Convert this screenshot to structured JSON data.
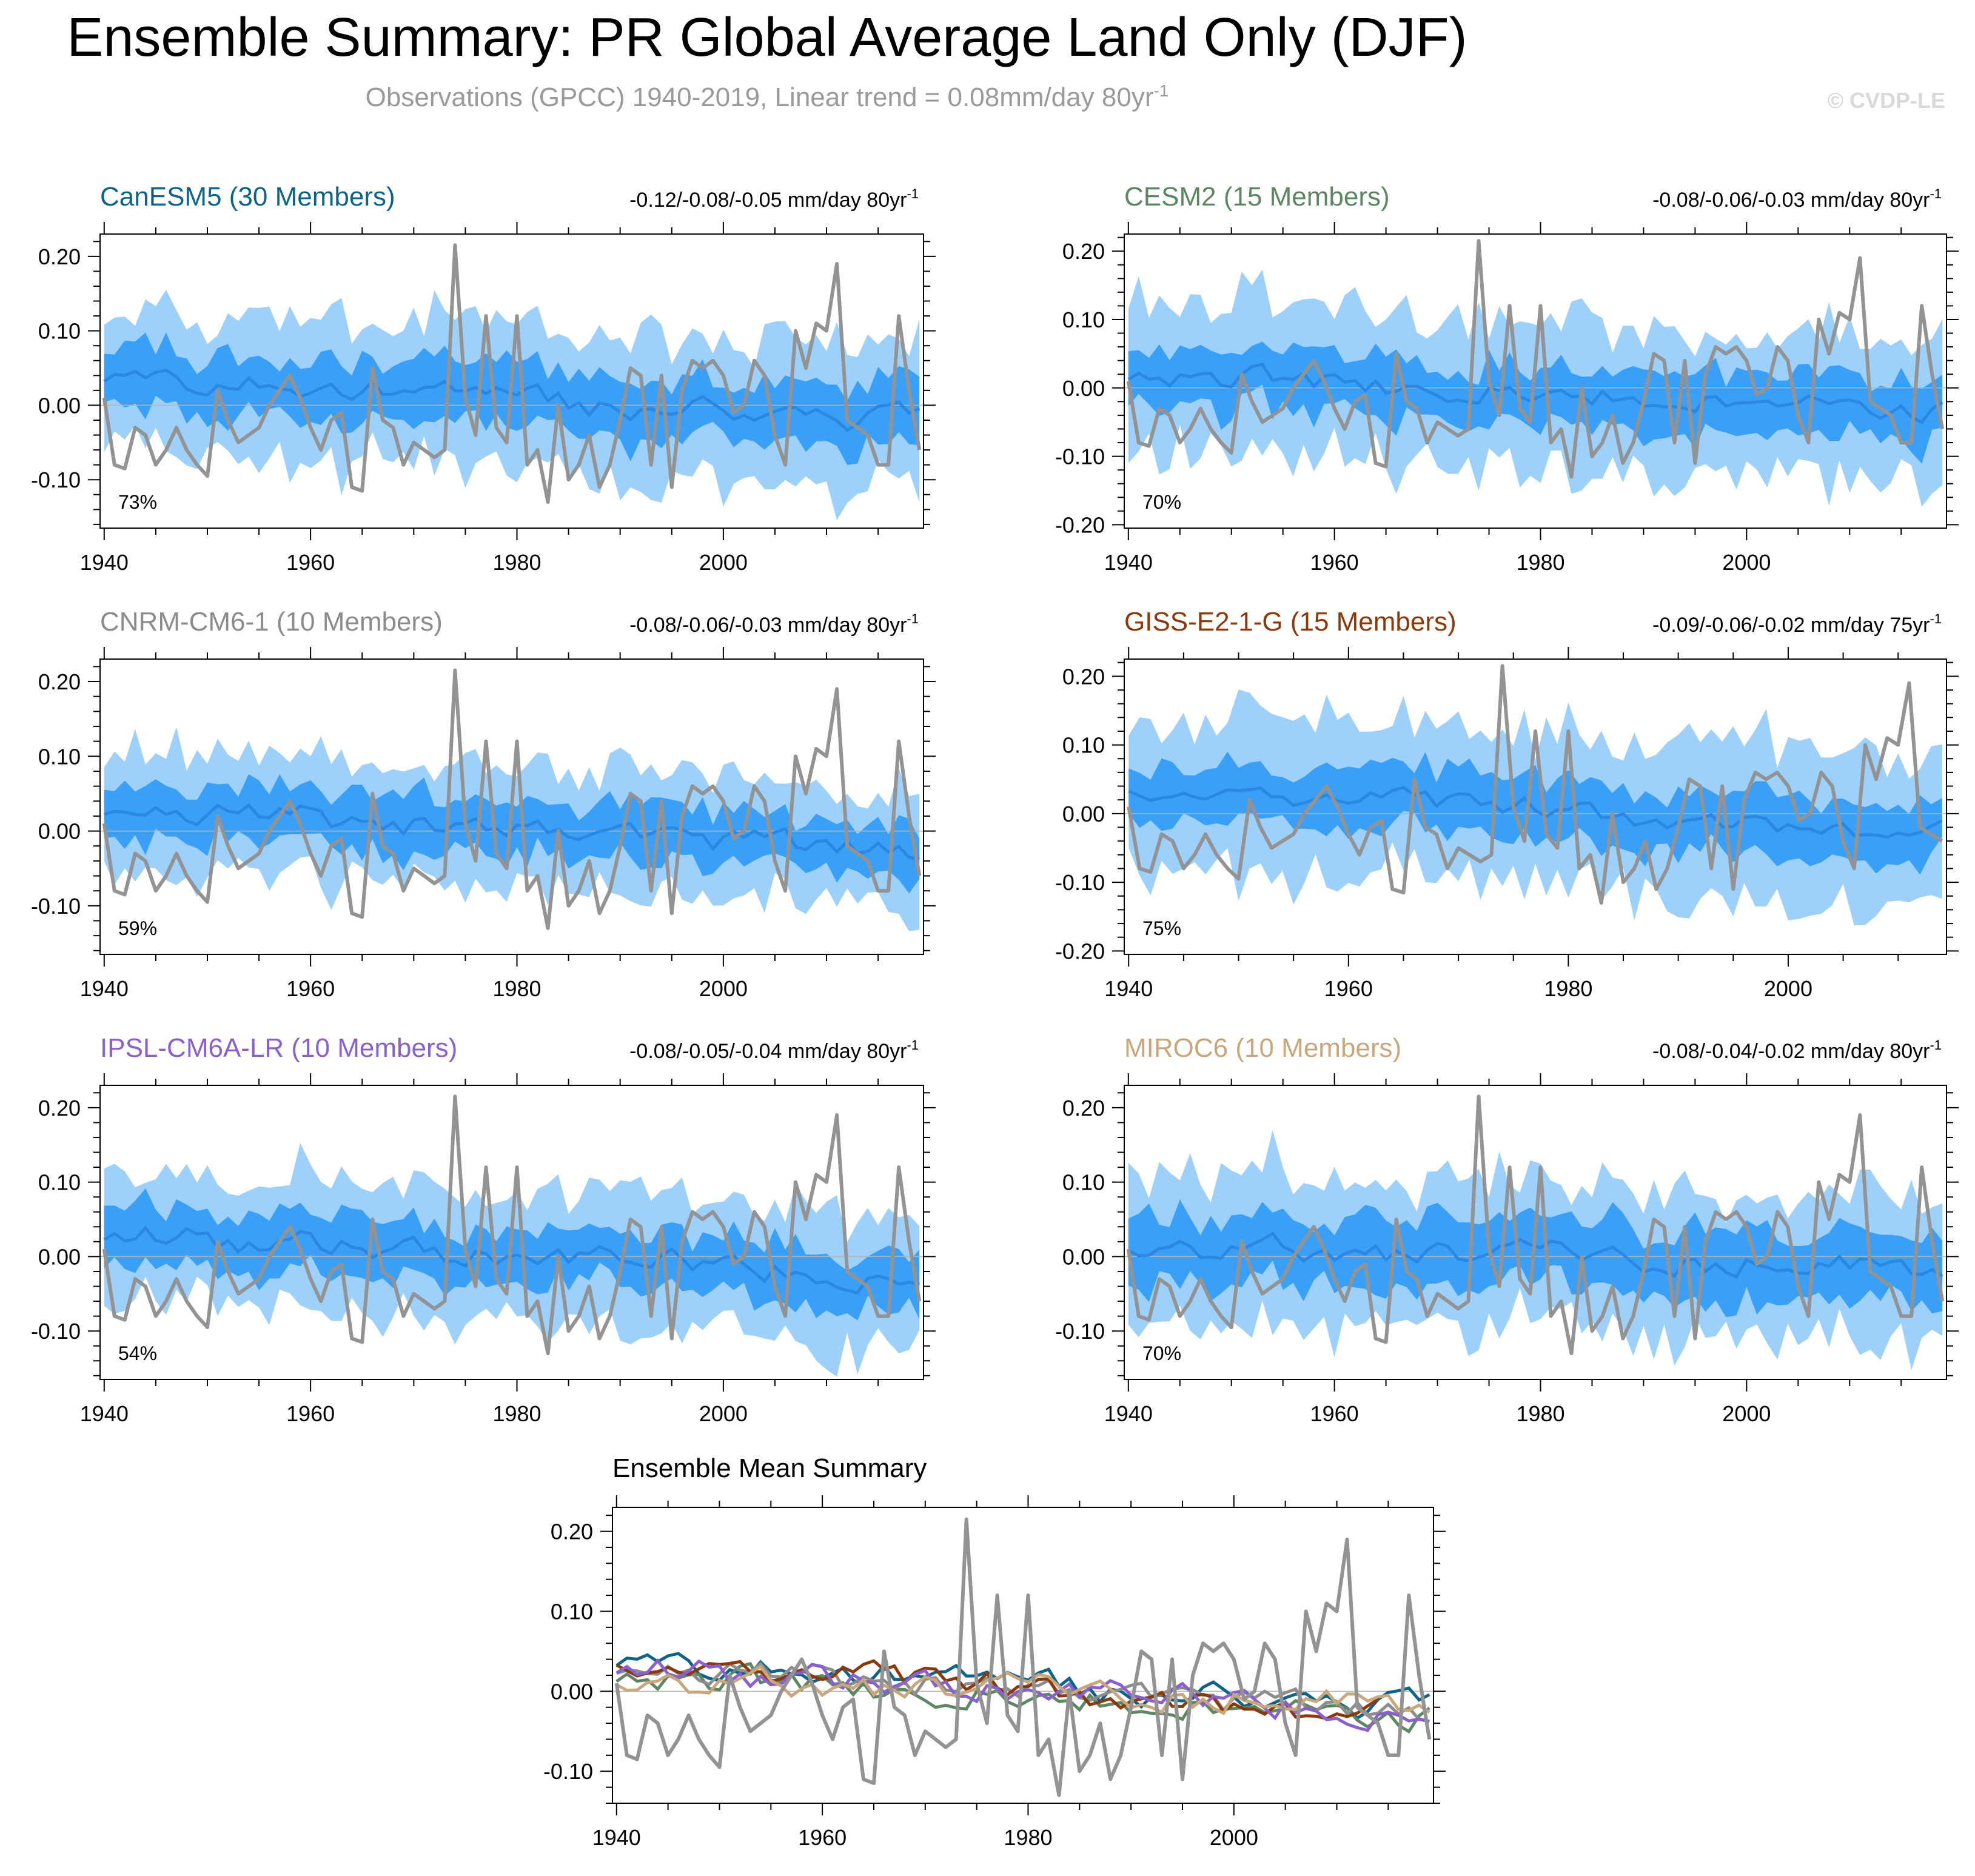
{
  "figure": {
    "title": "Ensemble Summary: PR Global Average Land Only (DJF)",
    "subtitle_prefix": "Observations (GPCC) 1940-2019, Linear trend = 0.08mm/day 80yr",
    "subtitle_sup": "-1",
    "watermark": "© CVDP-LE"
  },
  "colors": {
    "band_outer": "#9dd0fb",
    "band_inner": "#3a9ff7",
    "mean_line": "#2a87e3",
    "obs_line": "#939393",
    "zero_line": "#b4b4b4",
    "axis": "#000000",
    "title": "#000000",
    "subtitle": "#9a9a9a",
    "watermark": "#d9d9d9"
  },
  "chart_data": [
    {
      "type": "line",
      "panel": "CanESM5",
      "title": "CanESM5 (30 Members)",
      "title_color": "#0e6486",
      "trend_text": "-0.12/-0.08/-0.05 mm/day 80yr",
      "trend_sup": "-1",
      "percent_label": "73%",
      "x_start": 1940,
      "x_end": 2019,
      "xlim": [
        1939.6,
        2019.4
      ],
      "ylim": [
        -0.165,
        0.23
      ],
      "yticks": [
        -0.1,
        0.0,
        0.1,
        0.2
      ],
      "ytick_labels": [
        "-0.10",
        "0.00",
        "0.10",
        "0.20"
      ],
      "xticks": [
        1940,
        1960,
        1980,
        2000
      ],
      "xtick_labels": [
        "1940",
        "1960",
        "1980",
        "2000"
      ],
      "band_series": [
        "ens_min",
        "ens_p25",
        "ens_mean",
        "ens_p75",
        "ens_max"
      ],
      "ens_mean_start": 0.04,
      "ens_mean_end": -0.025,
      "inner_half_width": 0.038,
      "outer_half_width": 0.092,
      "seed": 11
    },
    {
      "type": "line",
      "panel": "CESM2",
      "title": "CESM2 (15 Members)",
      "title_color": "#5c8762",
      "trend_text": "-0.08/-0.06/-0.03 mm/day 80yr",
      "trend_sup": "-1",
      "percent_label": "70%",
      "x_start": 1940,
      "x_end": 2019,
      "xlim": [
        1939.6,
        2019.4
      ],
      "ylim": [
        -0.205,
        0.225
      ],
      "yticks": [
        -0.2,
        -0.1,
        0.0,
        0.1,
        0.2
      ],
      "ytick_labels": [
        "-0.20",
        "-0.10",
        "0.00",
        "0.10",
        "0.20"
      ],
      "xticks": [
        1940,
        1960,
        1980,
        2000
      ],
      "xtick_labels": [
        "1940",
        "1960",
        "1980",
        "2000"
      ],
      "band_series": [
        "ens_min",
        "ens_p25",
        "ens_mean",
        "ens_p75",
        "ens_max"
      ],
      "ens_mean_start": 0.02,
      "ens_mean_end": -0.03,
      "inner_half_width": 0.04,
      "outer_half_width": 0.105,
      "seed": 23
    },
    {
      "type": "line",
      "panel": "CNRM-CM6-1",
      "title": "CNRM-CM6-1 (10 Members)",
      "title_color": "#8c8c8c",
      "trend_text": "-0.08/-0.06/-0.03 mm/day 80yr",
      "trend_sup": "-1",
      "percent_label": "59%",
      "x_start": 1940,
      "x_end": 2019,
      "xlim": [
        1939.6,
        2019.4
      ],
      "ylim": [
        -0.165,
        0.23
      ],
      "yticks": [
        -0.1,
        0.0,
        0.1,
        0.2
      ],
      "ytick_labels": [
        "-0.10",
        "0.00",
        "0.10",
        "0.20"
      ],
      "xticks": [
        1940,
        1960,
        1980,
        2000
      ],
      "xtick_labels": [
        "1940",
        "1960",
        "1980",
        "2000"
      ],
      "band_series": [
        "ens_min",
        "ens_p25",
        "ens_mean",
        "ens_p75",
        "ens_max"
      ],
      "ens_mean_start": 0.03,
      "ens_mean_end": -0.03,
      "inner_half_width": 0.035,
      "outer_half_width": 0.08,
      "seed": 37
    },
    {
      "type": "line",
      "panel": "GISS-E2-1-G",
      "title": "GISS-E2-1-G (15 Members)",
      "title_color": "#8a3a0a",
      "trend_text": "-0.09/-0.06/-0.02 mm/day 75yr",
      "trend_sup": "-1",
      "percent_label": "75%",
      "x_start": 1940,
      "x_end": 2014,
      "xlim": [
        1939.6,
        2014.4
      ],
      "ylim": [
        -0.205,
        0.225
      ],
      "yticks": [
        -0.2,
        -0.1,
        0.0,
        0.1,
        0.2
      ],
      "ytick_labels": [
        "-0.20",
        "-0.10",
        "0.00",
        "0.10",
        "0.20"
      ],
      "xticks": [
        1940,
        1960,
        1980,
        2000
      ],
      "xtick_labels": [
        "1940",
        "1960",
        "1980",
        "2000"
      ],
      "band_series": [
        "ens_min",
        "ens_p25",
        "ens_mean",
        "ens_p75",
        "ens_max"
      ],
      "ens_mean_start": 0.04,
      "ens_mean_end": -0.03,
      "inner_half_width": 0.04,
      "outer_half_width": 0.11,
      "seed": 53
    },
    {
      "type": "line",
      "panel": "IPSL-CM6A-LR",
      "title": "IPSL-CM6A-LR (10 Members)",
      "title_color": "#8a5fd0",
      "trend_text": "-0.08/-0.05/-0.04 mm/day 80yr",
      "trend_sup": "-1",
      "percent_label": "54%",
      "x_start": 1940,
      "x_end": 2019,
      "xlim": [
        1939.6,
        2019.4
      ],
      "ylim": [
        -0.165,
        0.23
      ],
      "yticks": [
        -0.1,
        0.0,
        0.1,
        0.2
      ],
      "ytick_labels": [
        "-0.10",
        "0.00",
        "0.10",
        "0.20"
      ],
      "xticks": [
        1940,
        1960,
        1980,
        2000
      ],
      "xtick_labels": [
        "1940",
        "1960",
        "1980",
        "2000"
      ],
      "band_series": [
        "ens_min",
        "ens_p25",
        "ens_mean",
        "ens_p75",
        "ens_max"
      ],
      "ens_mean_start": 0.03,
      "ens_mean_end": -0.03,
      "inner_half_width": 0.035,
      "outer_half_width": 0.085,
      "seed": 71
    },
    {
      "type": "line",
      "panel": "MIROC6",
      "title": "MIROC6 (10 Members)",
      "title_color": "#c9a77c",
      "trend_text": "-0.08/-0.04/-0.02 mm/day 80yr",
      "trend_sup": "-1",
      "percent_label": "70%",
      "x_start": 1940,
      "x_end": 2019,
      "xlim": [
        1939.6,
        2019.4
      ],
      "ylim": [
        -0.165,
        0.23
      ],
      "yticks": [
        -0.1,
        0.0,
        0.1,
        0.2
      ],
      "ytick_labels": [
        "-0.10",
        "0.00",
        "0.10",
        "0.20"
      ],
      "xticks": [
        1940,
        1960,
        1980,
        2000
      ],
      "xtick_labels": [
        "1940",
        "1960",
        "1980",
        "2000"
      ],
      "band_series": [
        "ens_min",
        "ens_p25",
        "ens_mean",
        "ens_p75",
        "ens_max"
      ],
      "ens_mean_start": 0.015,
      "ens_mean_end": -0.015,
      "inner_half_width": 0.042,
      "outer_half_width": 0.095,
      "seed": 89
    },
    {
      "type": "line",
      "panel": "summary",
      "title": "Ensemble Mean Summary",
      "title_color": "#000000",
      "x_start": 1940,
      "x_end": 2019,
      "xlim": [
        1939.6,
        2019.4
      ],
      "ylim": [
        -0.14,
        0.23
      ],
      "yticks": [
        -0.1,
        0.0,
        0.1,
        0.2
      ],
      "ytick_labels": [
        "-0.10",
        "0.00",
        "0.10",
        "0.20"
      ],
      "xticks": [
        1940,
        1960,
        1980,
        2000
      ],
      "xtick_labels": [
        "1940",
        "1960",
        "1980",
        "2000"
      ],
      "series": [
        {
          "name": "CanESM5",
          "color": "#0e6486"
        },
        {
          "name": "CESM2",
          "color": "#5c8762"
        },
        {
          "name": "CNRM-CM6-1",
          "color": "#8c8c8c"
        },
        {
          "name": "GISS-E2-1-G",
          "color": "#8a3a0a"
        },
        {
          "name": "IPSL-CM6A-LR",
          "color": "#8a5fd0"
        },
        {
          "name": "MIROC6",
          "color": "#c9a77c"
        },
        {
          "name": "Observations (GPCC)",
          "color": "#939393"
        }
      ]
    }
  ],
  "observations": {
    "name": "GPCC",
    "years": [
      1940,
      2019
    ],
    "values": [
      0.01,
      -0.08,
      -0.085,
      -0.03,
      -0.04,
      -0.08,
      -0.06,
      -0.03,
      -0.06,
      -0.08,
      -0.095,
      0.02,
      -0.02,
      -0.05,
      -0.04,
      -0.03,
      0.0,
      0.02,
      0.04,
      0.01,
      -0.03,
      -0.06,
      -0.02,
      -0.01,
      -0.11,
      -0.115,
      0.05,
      -0.02,
      -0.03,
      -0.08,
      -0.05,
      -0.06,
      -0.07,
      -0.06,
      0.215,
      0.01,
      -0.04,
      0.12,
      -0.03,
      -0.05,
      0.12,
      -0.08,
      -0.06,
      -0.13,
      0.0,
      -0.1,
      -0.08,
      -0.04,
      -0.11,
      -0.08,
      -0.02,
      0.05,
      0.04,
      -0.08,
      0.04,
      -0.11,
      0.02,
      0.06,
      0.05,
      0.06,
      0.04,
      -0.01,
      0.0,
      0.06,
      0.04,
      -0.04,
      -0.08,
      0.1,
      0.05,
      0.11,
      0.1,
      0.19,
      -0.02,
      -0.03,
      -0.04,
      -0.08,
      -0.08,
      0.12,
      0.02,
      -0.06
    ]
  }
}
